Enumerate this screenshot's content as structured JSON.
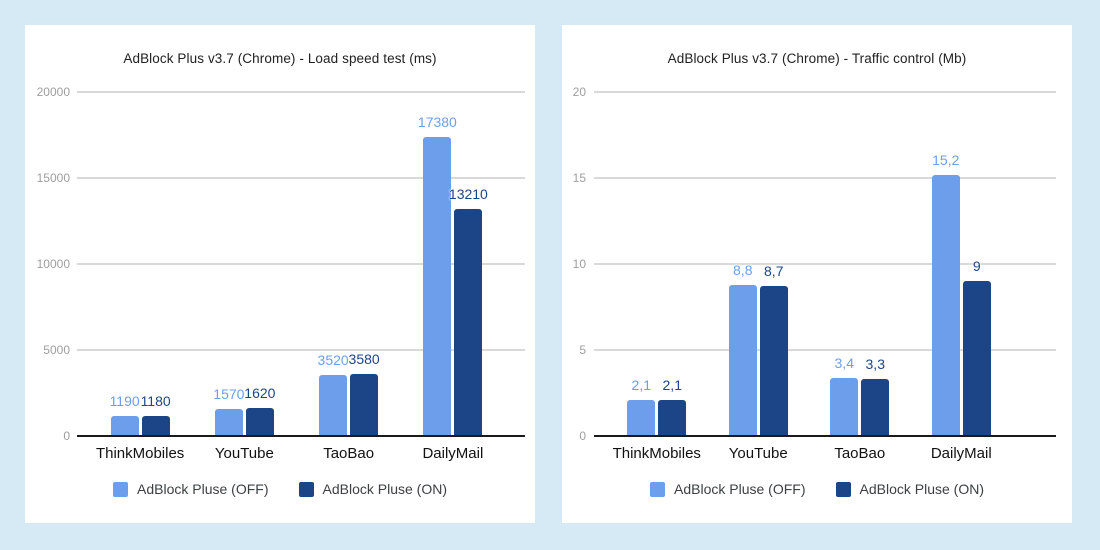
{
  "colors": {
    "page_bg": "#d6eaf6",
    "card_bg": "#ffffff",
    "gridline": "#d9d9d9",
    "axis_line": "#1a1a1a",
    "tick_label": "#9e9e9e",
    "title": "#212121",
    "category_label": "#111111",
    "legend_label": "#3c4043",
    "series_off": "#6d9eeb",
    "series_on": "#1c4587"
  },
  "chart_data": [
    {
      "type": "bar",
      "title": "AdBlock Plus v3.7 (Chrome) - Load speed test (ms)",
      "unit": "ms",
      "categories": [
        "ThinkMobiles",
        "YouTube",
        "TaoBao",
        "DailyMail"
      ],
      "series": [
        {
          "name": "AdBlock Pluse (OFF)",
          "key": "off",
          "color": "#6d9eeb",
          "values": [
            1190,
            1570,
            3520,
            17380
          ],
          "labels": [
            "1190",
            "1570",
            "3520",
            "17380"
          ]
        },
        {
          "name": "AdBlock Pluse (ON)",
          "key": "on",
          "color": "#1c4587",
          "values": [
            1180,
            1620,
            3580,
            13210
          ],
          "labels": [
            "1180",
            "1620",
            "3580",
            "13210"
          ]
        }
      ],
      "ylim": [
        0,
        20000
      ],
      "ytick_values": [
        0,
        5000,
        10000,
        15000,
        20000
      ],
      "ytick_labels": [
        "0",
        "5000",
        "10000",
        "15000",
        "20000"
      ],
      "grid": true,
      "legend_position": "bottom"
    },
    {
      "type": "bar",
      "title": "AdBlock Plus v3.7 (Chrome) - Traffic control (Mb)",
      "unit": "Mb",
      "categories": [
        "ThinkMobiles",
        "YouTube",
        "TaoBao",
        "DailyMail"
      ],
      "series": [
        {
          "name": "AdBlock Pluse (OFF)",
          "key": "off",
          "color": "#6d9eeb",
          "values": [
            2.1,
            8.8,
            3.4,
            15.2
          ],
          "labels": [
            "2,1",
            "8,8",
            "3,4",
            "15,2"
          ]
        },
        {
          "name": "AdBlock Pluse (ON)",
          "key": "on",
          "color": "#1c4587",
          "values": [
            2.1,
            8.7,
            3.3,
            9
          ],
          "labels": [
            "2,1",
            "8,7",
            "3,3",
            "9"
          ]
        }
      ],
      "ylim": [
        0,
        20
      ],
      "ytick_values": [
        0,
        5,
        10,
        15,
        20
      ],
      "ytick_labels": [
        "0",
        "5",
        "10",
        "15",
        "20"
      ],
      "grid": true,
      "legend_position": "bottom"
    }
  ]
}
